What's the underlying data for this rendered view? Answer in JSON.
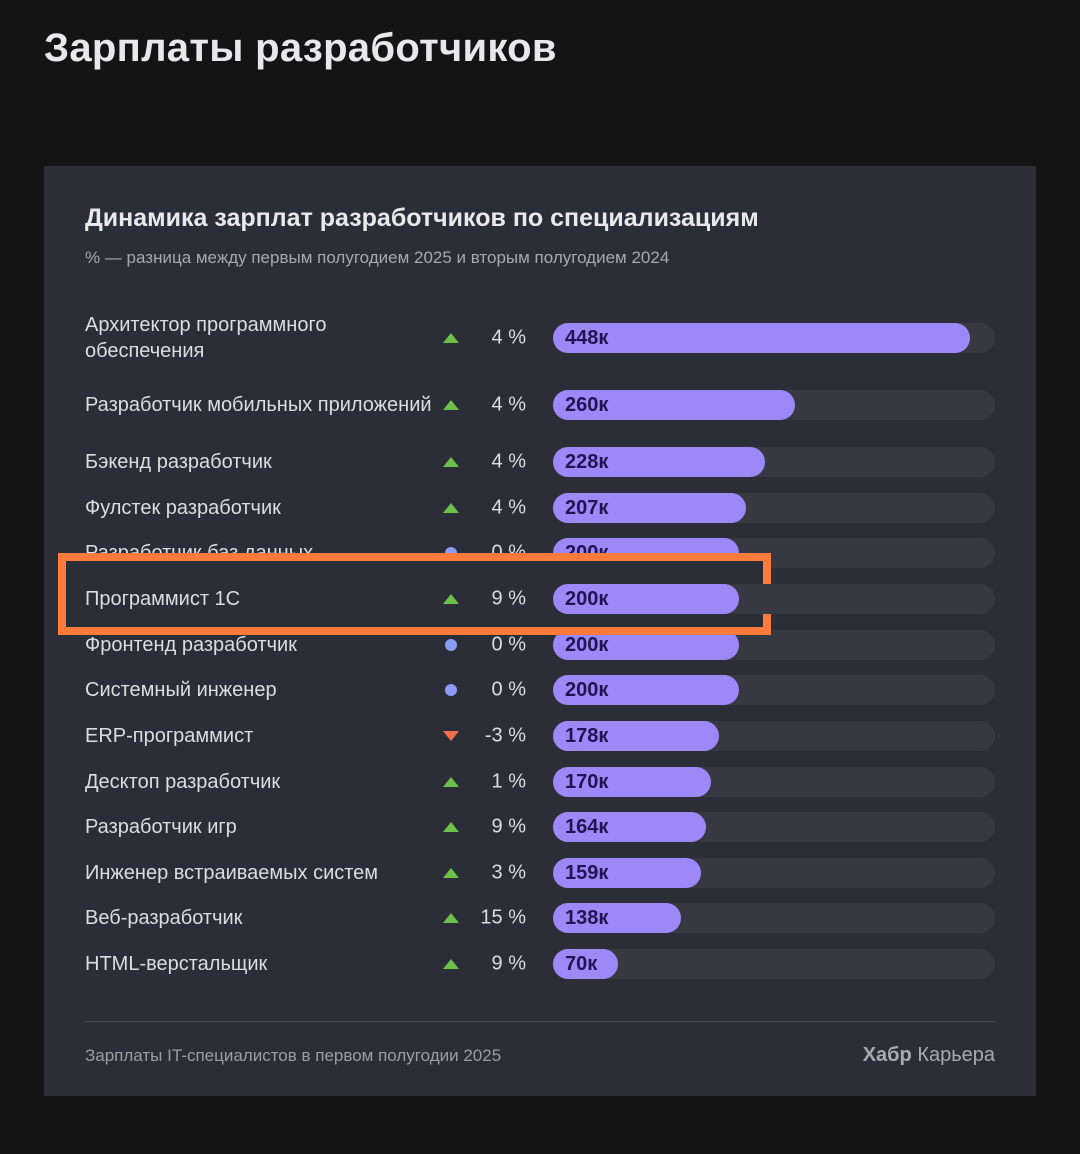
{
  "page_title": "Зарплаты разработчиков",
  "colors": {
    "bar": "#9d88f7",
    "track": "#373942",
    "up": "#6cc04a",
    "down": "#f0704a",
    "neutral": "#8c9cf5",
    "highlight": "#ff7b3c"
  },
  "chart_data": {
    "type": "bar",
    "orientation": "horizontal",
    "title": "Динамика зарплат разработчиков по специализациям",
    "subtitle": "% — разница между первым полугодием 2025 и вторым полугодием 2024",
    "categories": [
      "Архитектор программного обеспечения",
      "Разработчик мобильных приложений",
      "Бэкенд разработчик",
      "Фулстек разработчик",
      "Разработчик баз данных",
      "Программист 1С",
      "Фронтенд разработчик",
      "Системный инженер",
      "ERP-программист",
      "Десктоп разработчик",
      "Разработчик игр",
      "Инженер встраиваемых систем",
      "Веб-разработчик",
      "HTML-верстальщик"
    ],
    "values": [
      448,
      260,
      228,
      207,
      200,
      200,
      200,
      200,
      178,
      170,
      164,
      159,
      138,
      70
    ],
    "value_labels": [
      "448к",
      "260к",
      "228к",
      "207к",
      "200к",
      "200к",
      "200к",
      "200к",
      "178к",
      "170к",
      "164к",
      "159к",
      "138к",
      "70к"
    ],
    "change_labels": [
      "4 %",
      "4 %",
      "4 %",
      "4 %",
      "0 %",
      "9 %",
      "0 %",
      "0 %",
      "-3 %",
      "1 %",
      "9 %",
      "3 %",
      "15 %",
      "9 %"
    ],
    "change_icons": [
      "up-triangle",
      "up-triangle",
      "up-triangle",
      "up-triangle",
      "dot",
      "up-triangle",
      "dot",
      "dot",
      "down-triangle",
      "up-triangle",
      "up-triangle",
      "up-triangle",
      "up-triangle",
      "up-triangle"
    ],
    "xlim": [
      0,
      475
    ],
    "highlighted_category": "Программист 1С",
    "grid": false
  },
  "footer": {
    "note": "Зарплаты IT-специалистов в первом полугодии 2025",
    "brand_bold": "Хабр",
    "brand_rest": "Карьера"
  }
}
